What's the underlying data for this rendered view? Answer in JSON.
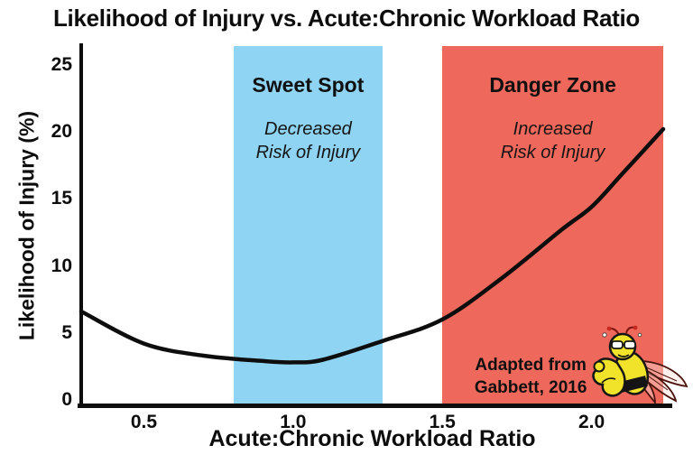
{
  "title": "Likelihood of Injury vs. Acute:Chronic Workload Ratio",
  "axes": {
    "x_label": "Acute:Chronic Workload Ratio",
    "y_label": "Likelihood of Injury (%)"
  },
  "zones": [
    {
      "name": "sweet-spot",
      "title": "Sweet Spot",
      "sub1": "Decreased",
      "sub2": "Risk of Injury",
      "color": "#8FD4F3",
      "x_start": 0.8,
      "x_end": 1.3
    },
    {
      "name": "danger-zone",
      "title": "Danger Zone",
      "sub1": "Increased",
      "sub2": "Risk of Injury",
      "color": "#EF685C",
      "x_start": 1.5,
      "x_end": 2.24
    }
  ],
  "attribution": {
    "line1": "Adapted from",
    "line2": "Gabbett, 2016"
  },
  "mascot_icon": "flexing-bee-mascot",
  "line_color": "#0d0d0d",
  "chart_data": {
    "type": "line",
    "title": "Likelihood of Injury vs. Acute:Chronic Workload Ratio",
    "xlabel": "Acute:Chronic Workload Ratio",
    "ylabel": "Likelihood of Injury (%)",
    "xlim": [
      0.29,
      2.24
    ],
    "ylim": [
      0,
      26.6
    ],
    "x_ticks": [
      0.5,
      1.0,
      1.5,
      2.0
    ],
    "y_ticks": [
      0,
      5,
      10,
      15,
      20,
      25
    ],
    "grid": false,
    "legend": "none",
    "series": [
      {
        "name": "Likelihood of Injury (%)",
        "x": [
          0.29,
          0.5,
          0.7,
          0.9,
          1.0,
          1.1,
          1.3,
          1.5,
          1.7,
          1.9,
          2.0,
          2.1,
          2.24
        ],
        "y": [
          6.6,
          4.2,
          3.3,
          2.9,
          2.8,
          3.0,
          4.4,
          6.0,
          9.1,
          12.7,
          14.4,
          16.8,
          20.2
        ]
      }
    ],
    "zones": [
      {
        "label": "Sweet Spot — Decreased Risk of Injury",
        "x_start": 0.8,
        "x_end": 1.3,
        "color": "#8FD4F3"
      },
      {
        "label": "Danger Zone — Increased Risk of Injury",
        "x_start": 1.5,
        "x_end": 2.24,
        "color": "#EF685C"
      }
    ],
    "annotations": [
      "Adapted from Gabbett, 2016"
    ]
  }
}
